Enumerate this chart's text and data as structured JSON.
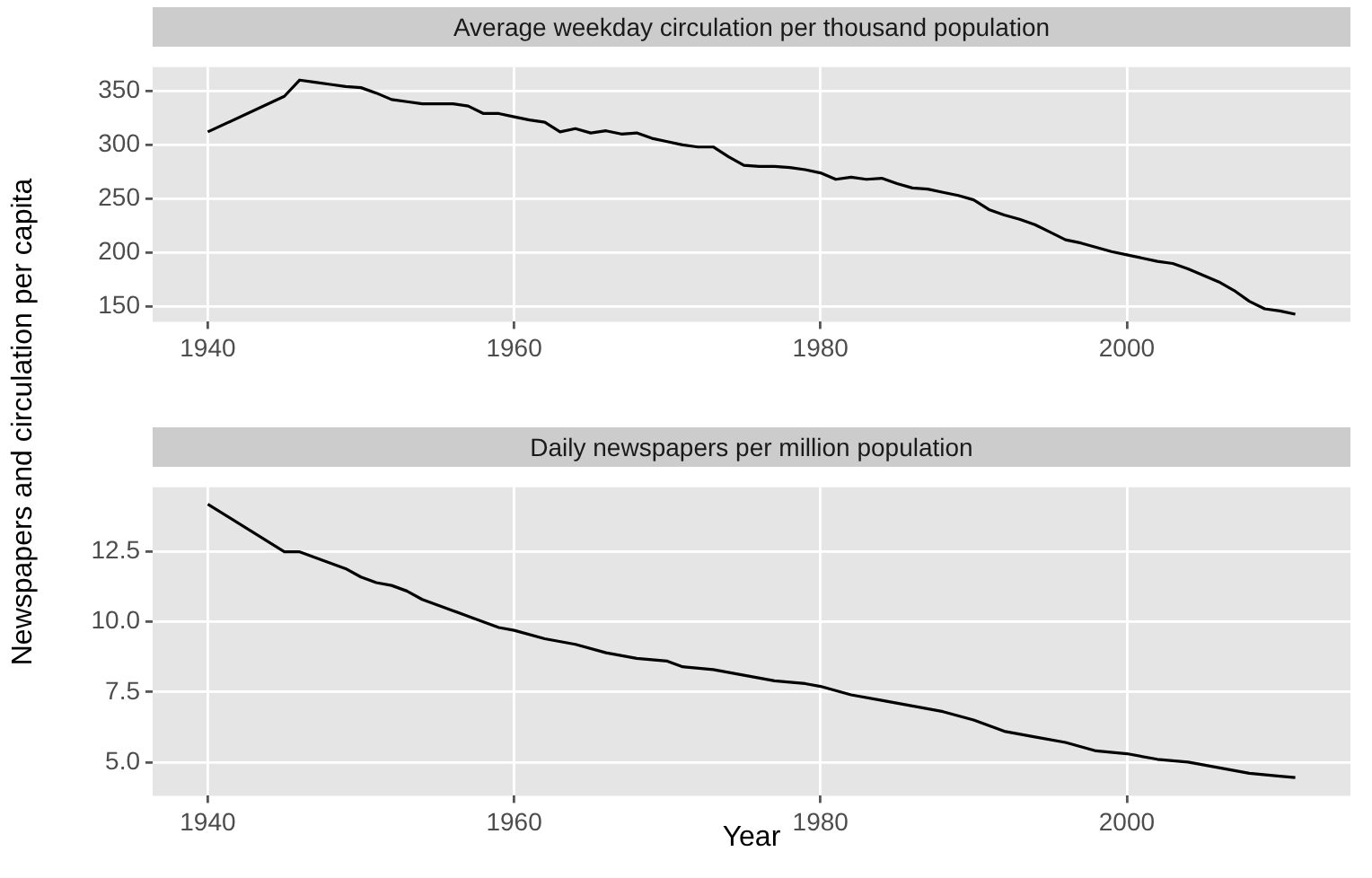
{
  "chart_data": [
    {
      "type": "line",
      "title": "Average weekday circulation per thousand population",
      "ylabel": "Newspapers and circulation per capita",
      "color": "#000000",
      "grid": true,
      "xlim": [
        1936.4,
        2014.6
      ],
      "ylim": [
        136,
        372
      ],
      "xticks": [
        1940,
        1960,
        1980,
        2000
      ],
      "yticks": [
        150,
        200,
        250,
        300,
        350
      ],
      "x": [
        1940,
        1945,
        1946,
        1947,
        1948,
        1949,
        1950,
        1951,
        1952,
        1953,
        1954,
        1955,
        1956,
        1957,
        1958,
        1959,
        1960,
        1961,
        1962,
        1963,
        1964,
        1965,
        1966,
        1967,
        1968,
        1969,
        1970,
        1971,
        1972,
        1973,
        1974,
        1975,
        1976,
        1977,
        1978,
        1979,
        1980,
        1981,
        1982,
        1983,
        1984,
        1985,
        1986,
        1987,
        1988,
        1989,
        1990,
        1991,
        1992,
        1993,
        1994,
        1995,
        1996,
        1997,
        1998,
        1999,
        2000,
        2001,
        2002,
        2003,
        2004,
        2005,
        2006,
        2007,
        2008,
        2009,
        2010,
        2011
      ],
      "values": [
        312,
        345,
        360,
        358,
        356,
        354,
        353,
        348,
        342,
        340,
        338,
        338,
        338,
        336,
        329,
        329,
        326,
        323,
        321,
        312,
        315,
        311,
        313,
        310,
        311,
        306,
        303,
        300,
        298,
        298,
        289,
        281,
        280,
        280,
        279,
        277,
        274,
        268,
        270,
        268,
        269,
        264,
        260,
        259,
        256,
        253,
        249,
        240,
        235,
        231,
        226,
        219,
        212,
        209,
        205,
        201,
        198,
        195,
        192,
        190,
        185,
        179,
        173,
        165,
        155,
        148,
        146,
        143
      ]
    },
    {
      "type": "line",
      "title": "Daily newspapers per million population",
      "xlabel": "Year",
      "color": "#000000",
      "grid": true,
      "xlim": [
        1936.4,
        2014.6
      ],
      "ylim": [
        3.8,
        14.8
      ],
      "xticks": [
        1940,
        1960,
        1980,
        2000
      ],
      "yticks": [
        {
          "value": 5,
          "label": "5.0"
        },
        7.5,
        {
          "value": 10,
          "label": "10.0"
        },
        12.5
      ],
      "x": [
        1940,
        1945,
        1946,
        1947,
        1948,
        1949,
        1950,
        1951,
        1952,
        1953,
        1954,
        1955,
        1956,
        1957,
        1958,
        1959,
        1960,
        1962,
        1964,
        1966,
        1968,
        1970,
        1971,
        1973,
        1975,
        1977,
        1979,
        1980,
        1982,
        1984,
        1986,
        1988,
        1990,
        1992,
        1994,
        1996,
        1998,
        2000,
        2002,
        2004,
        2006,
        2008,
        2010,
        2011
      ],
      "values": [
        14.2,
        12.5,
        12.5,
        12.3,
        12.1,
        11.9,
        11.6,
        11.4,
        11.3,
        11.1,
        10.8,
        10.6,
        10.4,
        10.2,
        10.0,
        9.8,
        9.7,
        9.4,
        9.2,
        8.9,
        8.7,
        8.6,
        8.4,
        8.3,
        8.1,
        7.9,
        7.8,
        7.7,
        7.4,
        7.2,
        7.0,
        6.8,
        6.5,
        6.1,
        5.9,
        5.7,
        5.4,
        5.3,
        5.1,
        5.0,
        4.8,
        4.6,
        4.5,
        4.45
      ]
    }
  ]
}
